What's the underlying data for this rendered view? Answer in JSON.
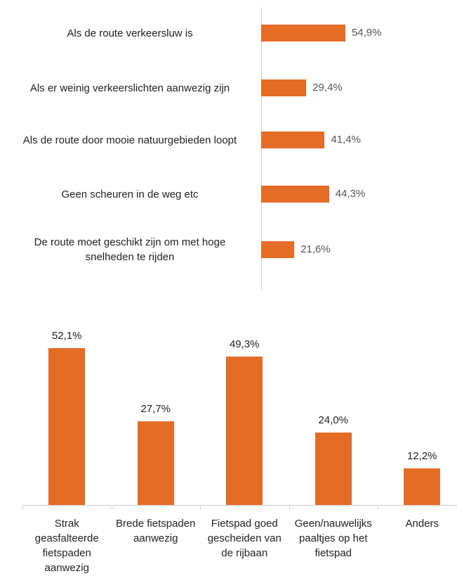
{
  "chart_data": [
    {
      "type": "hbar",
      "categories": [
        "Als de route verkeersluw is",
        "Als er weinig verkeerslichten aanwezig zijn",
        "Als de route door mooie natuurgebieden loopt",
        "Geen scheuren in de weg etc",
        "De route moet geschikt zijn om met hoge snelheden te rijden"
      ],
      "values": [
        54.9,
        29.4,
        41.4,
        44.3,
        21.6
      ],
      "value_labels": [
        "54,9%",
        "29,4%",
        "41,4%",
        "44,3%",
        "21,6%"
      ],
      "color": "#e46c26"
    },
    {
      "type": "bar",
      "categories": [
        "Strak geasfalteerde fietspaden aanwezig",
        "Brede fietspaden aanwezig",
        "Fietspad goed gescheiden van de rijbaan",
        "Geen/nauwelijks paaltjes op het fietspad",
        "Anders"
      ],
      "values": [
        52.1,
        27.7,
        49.3,
        24.0,
        12.2
      ],
      "value_labels": [
        "52,1%",
        "27,7%",
        "49,3%",
        "24,0%",
        "12,2%"
      ],
      "color": "#e46c26"
    }
  ]
}
